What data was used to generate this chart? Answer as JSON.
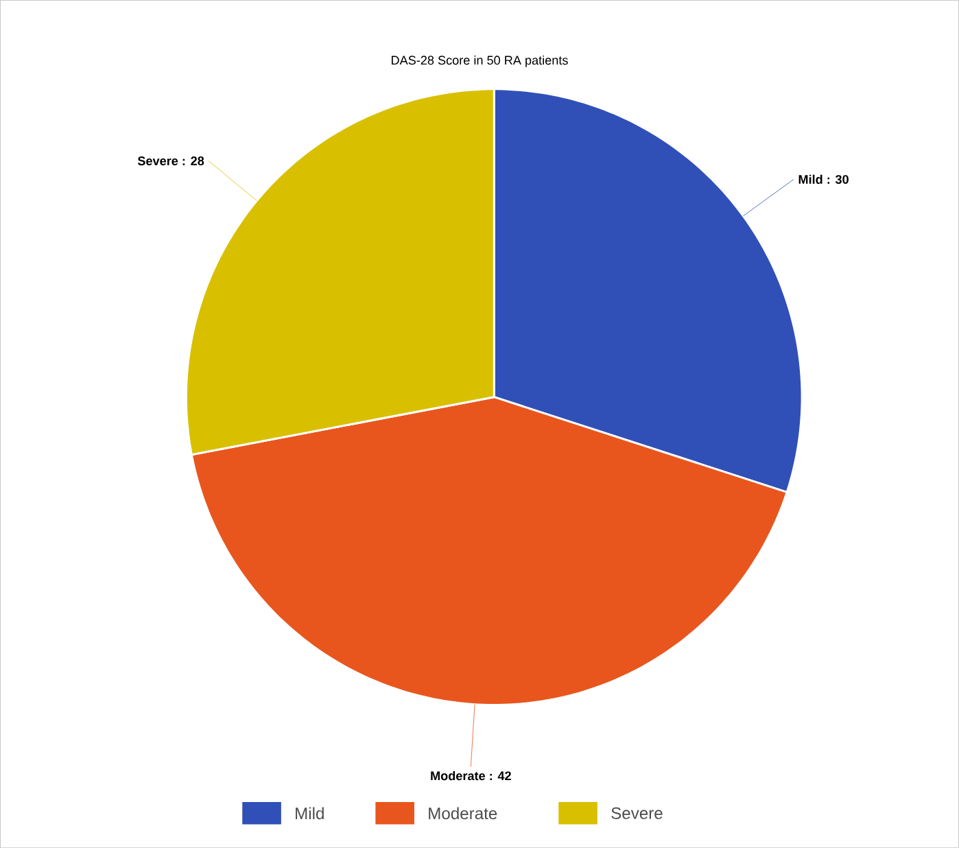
{
  "chart_data": {
    "type": "pie",
    "title": "DAS-28 Score in 50 RA patients",
    "categories": [
      "Mild",
      "Moderate",
      "Severe"
    ],
    "values": [
      30,
      42,
      28
    ],
    "colors": [
      "#3050b8",
      "#e8561e",
      "#d8c000"
    ],
    "value_labels": [
      ": 30",
      ": 42",
      ": 28"
    ],
    "legend": "bottom"
  }
}
